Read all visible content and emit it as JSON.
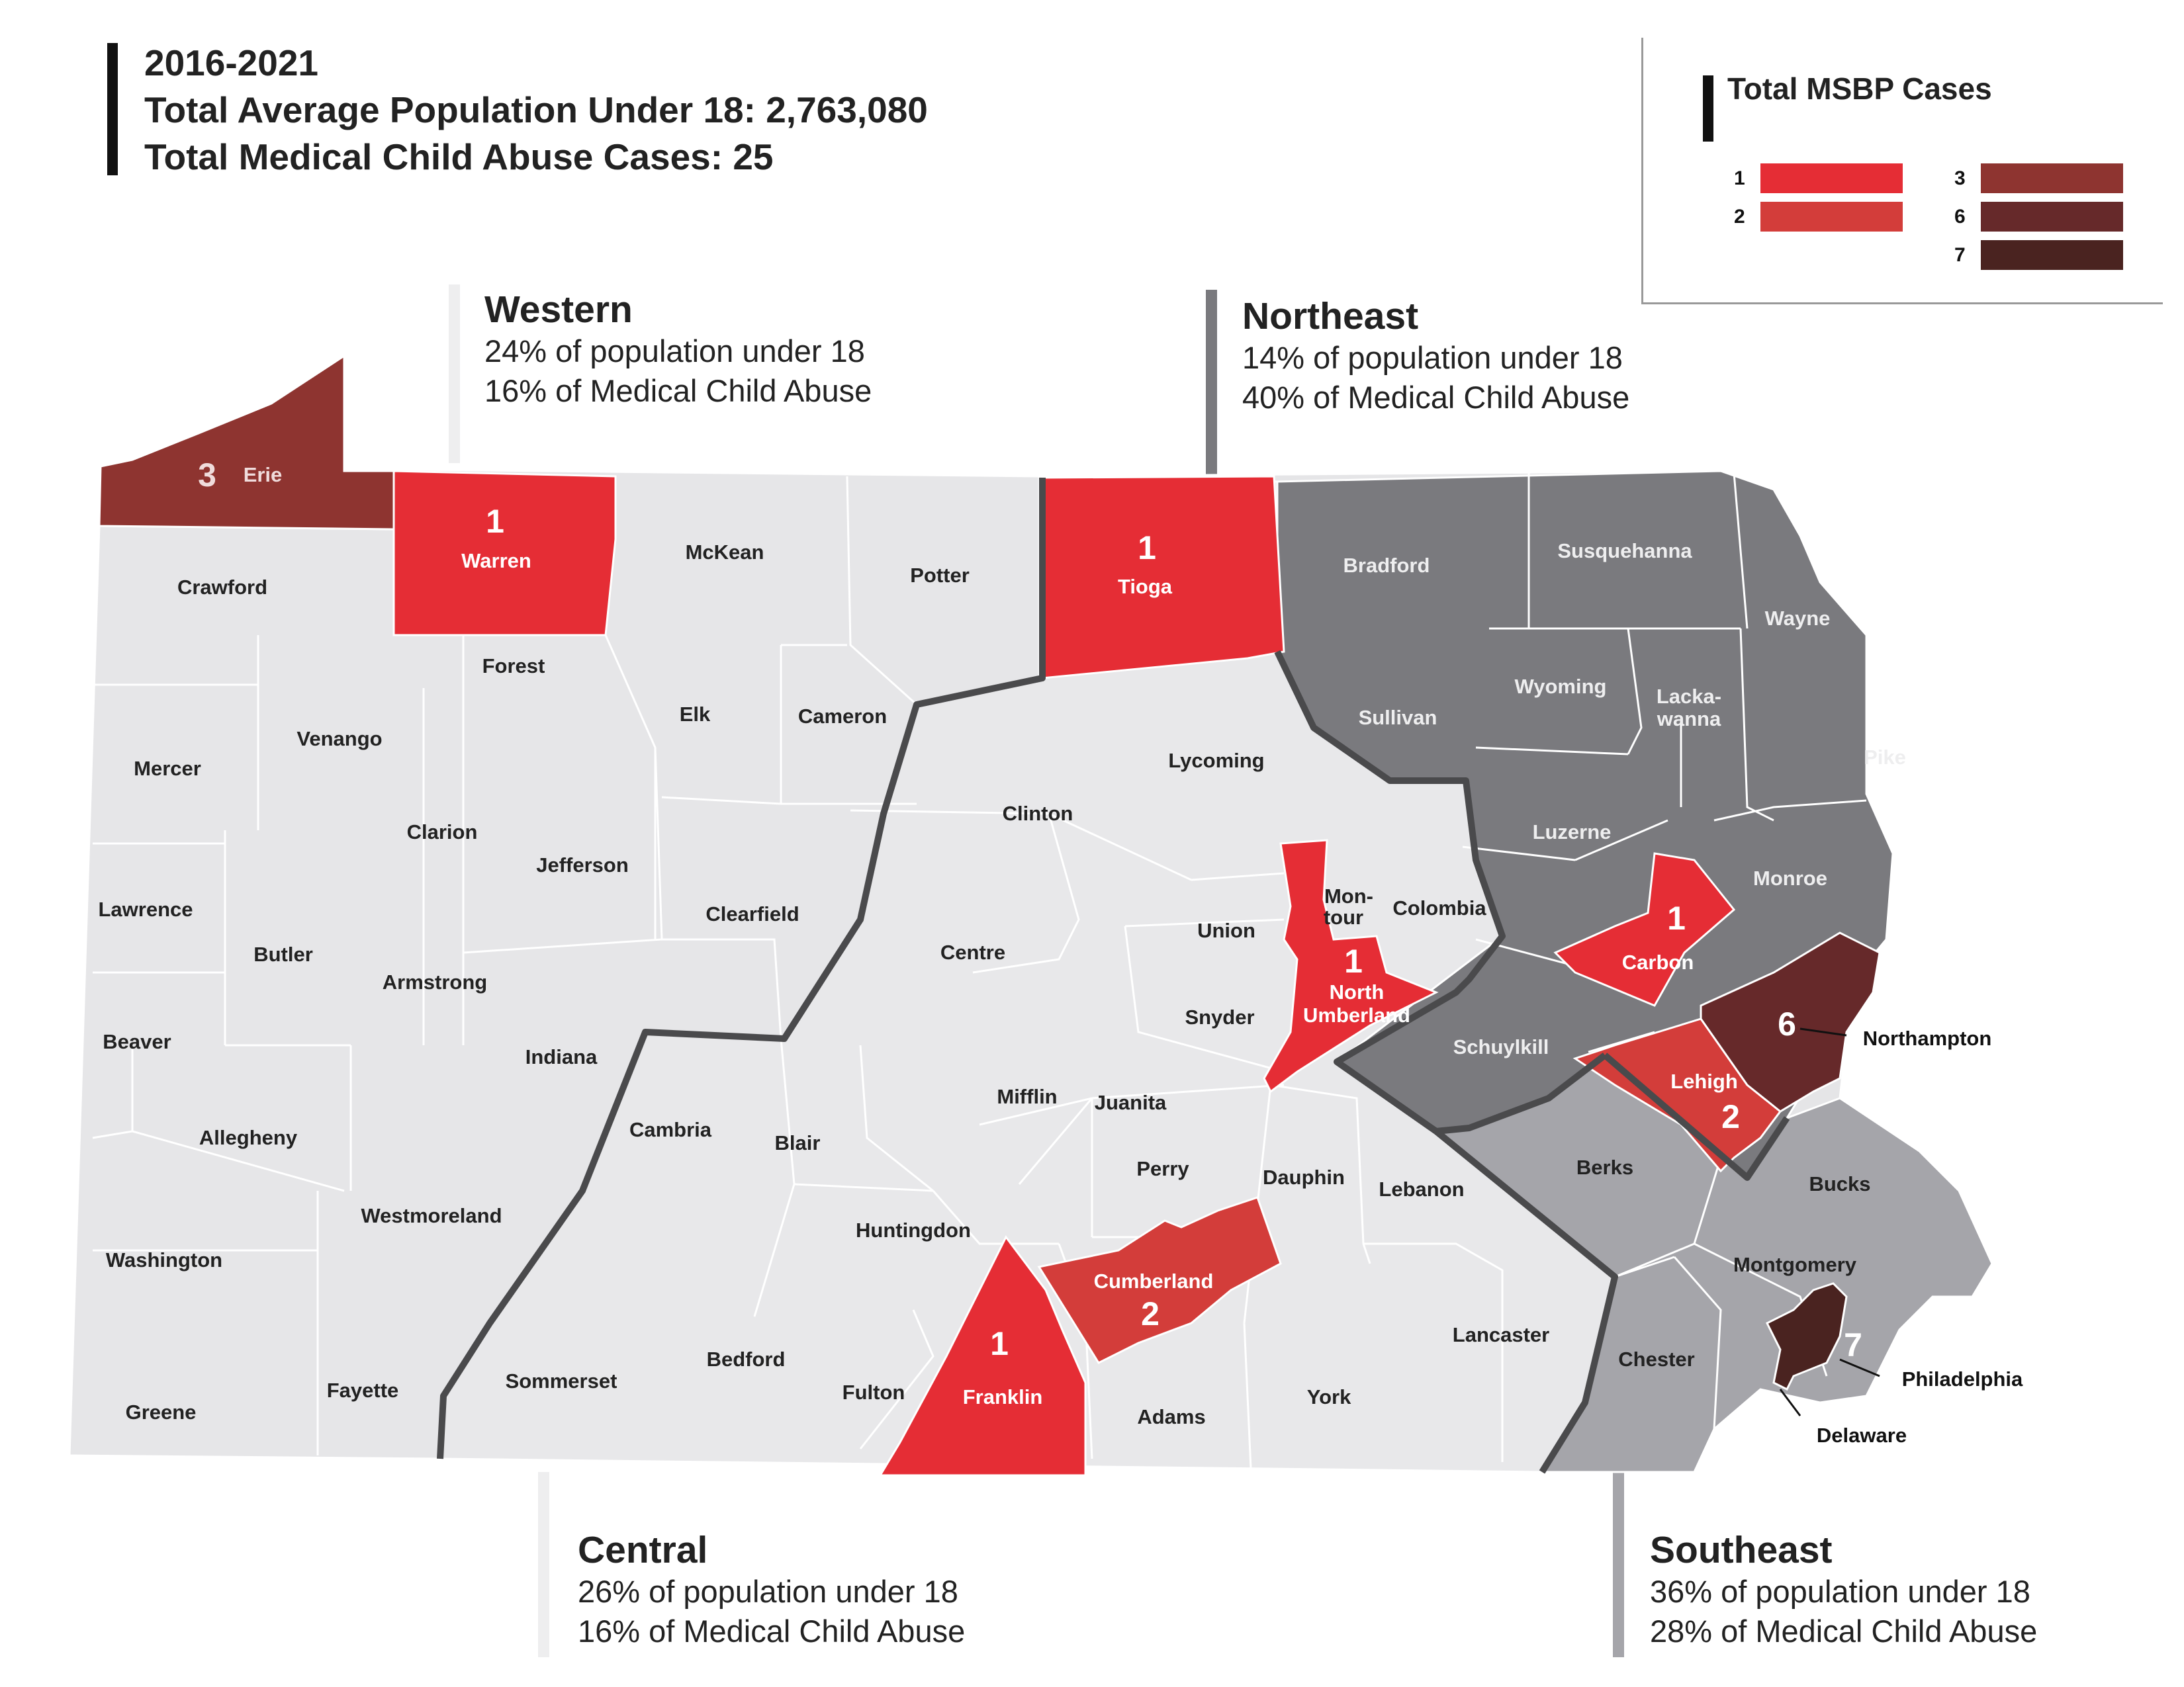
{
  "header": {
    "years": "2016-2021",
    "population_line": "Total Average Population Under 18: 2,763,080",
    "cases_line": "Total Medical Child Abuse Cases: 25"
  },
  "legend": {
    "title": "Total MSBP Cases",
    "items": [
      {
        "label": "1",
        "color": "#e52d35"
      },
      {
        "label": "2",
        "color": "#d33d3a"
      },
      {
        "label": "3",
        "color": "#8e3430"
      },
      {
        "label": "6",
        "color": "#66292a"
      },
      {
        "label": "7",
        "color": "#4a2320"
      }
    ]
  },
  "regions": {
    "western": {
      "name": "Western",
      "pop": "24% of population under 18",
      "abuse": "16% of Medical Child Abuse",
      "color": "#e9e9ea"
    },
    "northeast": {
      "name": "Northeast",
      "pop": "14% of population under 18",
      "abuse": "40% of Medical Child Abuse",
      "color": "#7a7a7e"
    },
    "central": {
      "name": "Central",
      "pop": "26% of population under 18",
      "abuse": "16% of Medical Child Abuse",
      "color": "#eeeeef"
    },
    "southeast": {
      "name": "Southeast",
      "pop": "36% of population under 18",
      "abuse": "28% of Medical Child Abuse",
      "color": "#a5a5aa"
    }
  },
  "counties": {
    "erie": "Erie",
    "warren": "Warren",
    "mckean": "McKean",
    "potter": "Potter",
    "tioga": "Tioga",
    "bradford": "Bradford",
    "susquehanna": "Susquehanna",
    "wayne": "Wayne",
    "crawford": "Crawford",
    "forest": "Forest",
    "elk": "Elk",
    "cameron": "Cameron",
    "lycoming": "Lycoming",
    "sullivan": "Sullivan",
    "wyoming": "Wyoming",
    "lackawanna_1": "Lacka-",
    "lackawanna_2": "wanna",
    "pike": "Pike",
    "mercer": "Mercer",
    "venango": "Venango",
    "clarion": "Clarion",
    "jefferson": "Jefferson",
    "clearfield": "Clearfield",
    "clinton": "Clinton",
    "centre": "Centre",
    "union": "Union",
    "montour_1": "Mon-",
    "montour_2": "tour",
    "columbia": "Colombia",
    "luzerne": "Luzerne",
    "monroe": "Monroe",
    "carbon": "Carbon",
    "northumberland_1": "North",
    "northumberland_2": "Umberland",
    "lawrence": "Lawrence",
    "butler": "Butler",
    "armstrong": "Armstrong",
    "indiana": "Indiana",
    "beaver": "Beaver",
    "allegheny": "Allegheny",
    "westmoreland": "Westmoreland",
    "washington": "Washington",
    "greene": "Greene",
    "fayette": "Fayette",
    "somerset": "Sommerset",
    "cambria": "Cambria",
    "blair": "Blair",
    "bedford": "Bedford",
    "fulton": "Fulton",
    "huntingdon": "Huntingdon",
    "mifflin": "Mifflin",
    "juanita": "Juanita",
    "snyder": "Snyder",
    "perry": "Perry",
    "franklin": "Franklin",
    "cumberland": "Cumberland",
    "adams": "Adams",
    "york": "York",
    "dauphin": "Dauphin",
    "lebanon": "Lebanon",
    "lancaster": "Lancaster",
    "schuylkill": "Schuylkill",
    "lehigh": "Lehigh",
    "northampton": "Northampton",
    "berks": "Berks",
    "bucks": "Bucks",
    "montgomery": "Montgomery",
    "chester": "Chester",
    "delaware": "Delaware",
    "philadelphia": "Philadelphia"
  },
  "case_counts": {
    "erie": "3",
    "warren": "1",
    "tioga": "1",
    "northumberland": "1",
    "carbon": "1",
    "northampton": "6",
    "lehigh": "2",
    "cumberland": "2",
    "franklin": "1",
    "philadelphia": "7"
  }
}
